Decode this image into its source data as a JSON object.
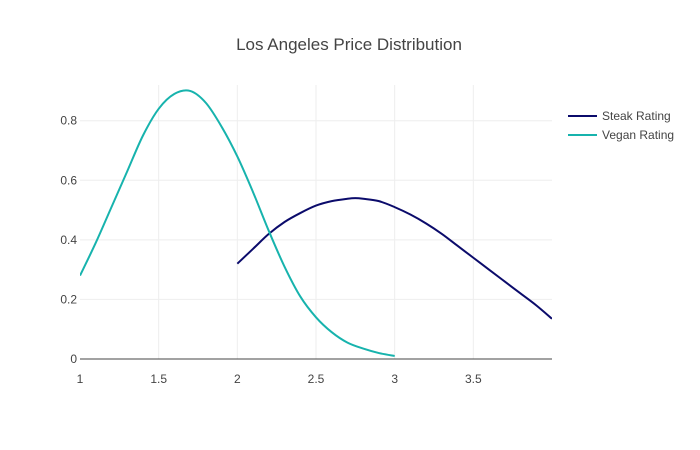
{
  "chart_data": {
    "type": "line",
    "title": "Los Angeles Price Distribution",
    "xlabel": "",
    "ylabel": "",
    "xlim": [
      1,
      4
    ],
    "ylim": [
      0,
      0.9
    ],
    "x_ticks": [
      "1",
      "1.5",
      "2",
      "2.5",
      "3",
      "3.5"
    ],
    "y_ticks": [
      "0",
      "0.2",
      "0.4",
      "0.6",
      "0.8"
    ],
    "grid": true,
    "legend_position": "top-right",
    "series": [
      {
        "name": "Steak Rating",
        "color": "#0b0b6b",
        "x": [
          2.0,
          2.1,
          2.2,
          2.3,
          2.4,
          2.5,
          2.6,
          2.7,
          2.75,
          2.8,
          2.9,
          3.0,
          3.1,
          3.2,
          3.3,
          3.4,
          3.5,
          3.6,
          3.7,
          3.8,
          3.9,
          4.0
        ],
        "y": [
          0.32,
          0.37,
          0.42,
          0.46,
          0.49,
          0.515,
          0.53,
          0.538,
          0.54,
          0.538,
          0.53,
          0.51,
          0.485,
          0.455,
          0.42,
          0.38,
          0.34,
          0.3,
          0.26,
          0.22,
          0.18,
          0.135
        ]
      },
      {
        "name": "Vegan Rating",
        "color": "#17b3ad",
        "x": [
          1.0,
          1.1,
          1.2,
          1.3,
          1.4,
          1.5,
          1.6,
          1.7,
          1.8,
          1.9,
          2.0,
          2.1,
          2.2,
          2.3,
          2.4,
          2.5,
          2.6,
          2.7,
          2.8,
          2.9,
          3.0
        ],
        "y": [
          0.28,
          0.39,
          0.51,
          0.63,
          0.75,
          0.84,
          0.89,
          0.9,
          0.86,
          0.78,
          0.68,
          0.56,
          0.43,
          0.31,
          0.21,
          0.14,
          0.09,
          0.055,
          0.035,
          0.02,
          0.01
        ]
      }
    ]
  }
}
